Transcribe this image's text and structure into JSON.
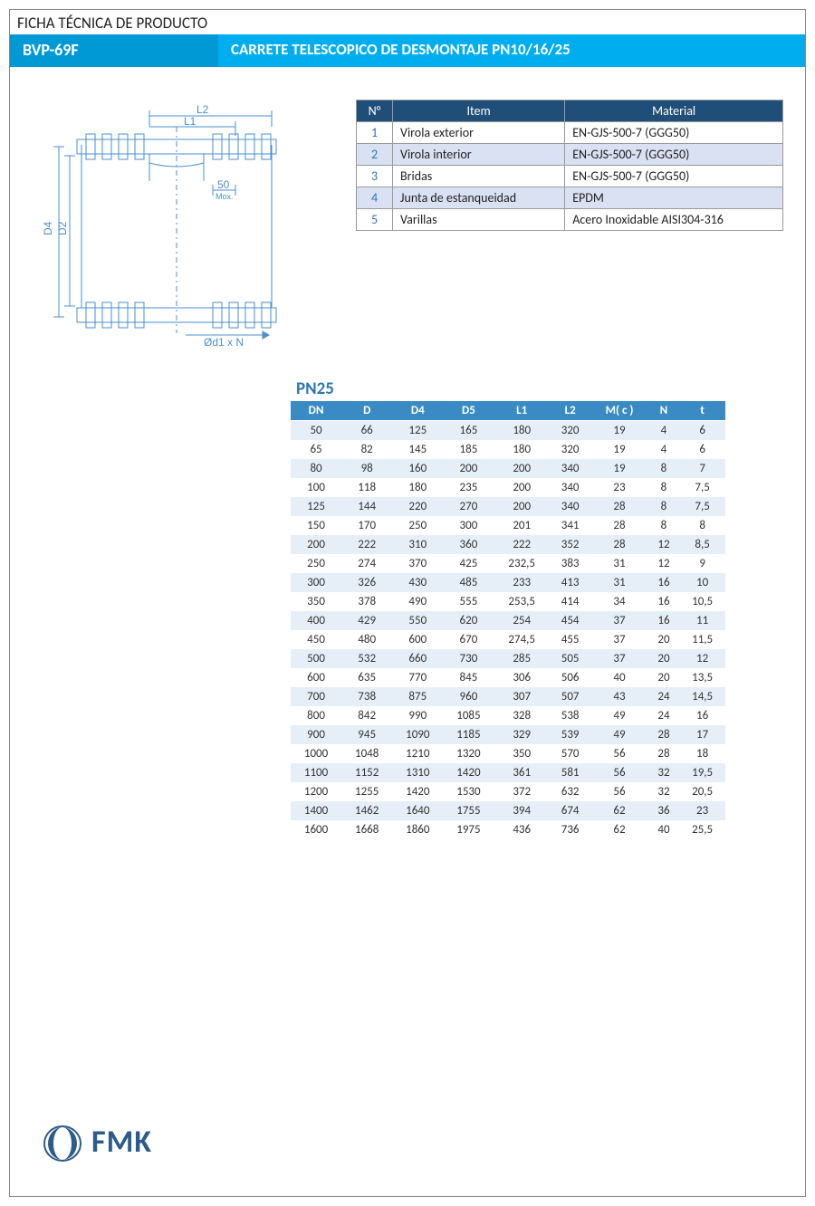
{
  "header": {
    "pre_title": "FICHA TÉCNICA DE PRODUCTO",
    "code": "BVP-69F",
    "name": "CARRETE TELESCOPICO DE DESMONTAJE PN10/16/25"
  },
  "drawing": {
    "labels": {
      "L1": "L1",
      "L2": "L2",
      "D4": "D4",
      "D2": "D2",
      "tol": "50",
      "tol_sub": "Mox.",
      "diam": "Ød1 x N"
    },
    "colors": {
      "line": "#4a8fd0"
    }
  },
  "materials": {
    "headers": [
      "N°",
      "Item",
      "Material"
    ],
    "rows": [
      {
        "n": "1",
        "item": "Virola exterior",
        "material": "EN-GJS-500-7 (GGG50)"
      },
      {
        "n": "2",
        "item": "Virola interior",
        "material": "EN-GJS-500-7 (GGG50)"
      },
      {
        "n": "3",
        "item": "Bridas",
        "material": "EN-GJS-500-7 (GGG50)"
      },
      {
        "n": "4",
        "item": "Junta de estanqueidad",
        "material": "EPDM"
      },
      {
        "n": "5",
        "item": "Varillas",
        "material": "Acero Inoxidable AISI304-316"
      }
    ],
    "colors": {
      "header_bg": "#1f4e79",
      "alt_bg": "#d9e1f2",
      "num_color": "#2e75b6"
    }
  },
  "dimensions": {
    "label": "PN25",
    "headers": [
      "DN",
      "D",
      "D4",
      "D5",
      "L1",
      "L2",
      "M( c )",
      "N",
      "t"
    ],
    "rows": [
      [
        "50",
        "66",
        "125",
        "165",
        "180",
        "320",
        "19",
        "4",
        "6"
      ],
      [
        "65",
        "82",
        "145",
        "185",
        "180",
        "320",
        "19",
        "4",
        "6"
      ],
      [
        "80",
        "98",
        "160",
        "200",
        "200",
        "340",
        "19",
        "8",
        "7"
      ],
      [
        "100",
        "118",
        "180",
        "235",
        "200",
        "340",
        "23",
        "8",
        "7,5"
      ],
      [
        "125",
        "144",
        "220",
        "270",
        "200",
        "340",
        "28",
        "8",
        "7,5"
      ],
      [
        "150",
        "170",
        "250",
        "300",
        "201",
        "341",
        "28",
        "8",
        "8"
      ],
      [
        "200",
        "222",
        "310",
        "360",
        "222",
        "352",
        "28",
        "12",
        "8,5"
      ],
      [
        "250",
        "274",
        "370",
        "425",
        "232,5",
        "383",
        "31",
        "12",
        "9"
      ],
      [
        "300",
        "326",
        "430",
        "485",
        "233",
        "413",
        "31",
        "16",
        "10"
      ],
      [
        "350",
        "378",
        "490",
        "555",
        "253,5",
        "414",
        "34",
        "16",
        "10,5"
      ],
      [
        "400",
        "429",
        "550",
        "620",
        "254",
        "454",
        "37",
        "16",
        "11"
      ],
      [
        "450",
        "480",
        "600",
        "670",
        "274,5",
        "455",
        "37",
        "20",
        "11,5"
      ],
      [
        "500",
        "532",
        "660",
        "730",
        "285",
        "505",
        "37",
        "20",
        "12"
      ],
      [
        "600",
        "635",
        "770",
        "845",
        "306",
        "506",
        "40",
        "20",
        "13,5"
      ],
      [
        "700",
        "738",
        "875",
        "960",
        "307",
        "507",
        "43",
        "24",
        "14,5"
      ],
      [
        "800",
        "842",
        "990",
        "1085",
        "328",
        "538",
        "49",
        "24",
        "16"
      ],
      [
        "900",
        "945",
        "1090",
        "1185",
        "329",
        "539",
        "49",
        "28",
        "17"
      ],
      [
        "1000",
        "1048",
        "1210",
        "1320",
        "350",
        "570",
        "56",
        "28",
        "18"
      ],
      [
        "1100",
        "1152",
        "1310",
        "1420",
        "361",
        "581",
        "56",
        "32",
        "19,5"
      ],
      [
        "1200",
        "1255",
        "1420",
        "1530",
        "372",
        "632",
        "56",
        "32",
        "20,5"
      ],
      [
        "1400",
        "1462",
        "1640",
        "1755",
        "394",
        "674",
        "62",
        "36",
        "23"
      ],
      [
        "1600",
        "1668",
        "1860",
        "1975",
        "436",
        "736",
        "62",
        "40",
        "25,5"
      ]
    ],
    "colors": {
      "header_bg": "#3a8bc4",
      "shade_bg": "#e6eff8",
      "label_color": "#2e75b6"
    }
  },
  "logo": {
    "text": "FMK",
    "sub": ""
  }
}
